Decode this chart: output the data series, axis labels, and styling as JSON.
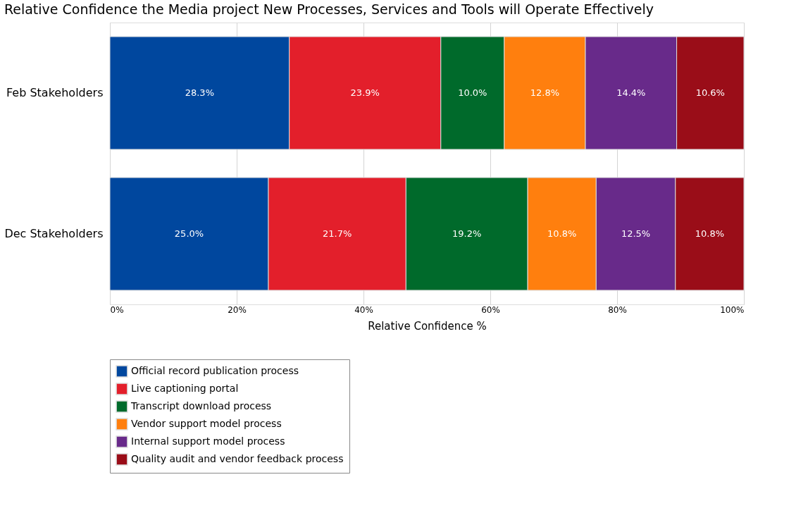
{
  "chart_data": {
    "type": "bar",
    "orientation": "horizontal",
    "stacked": true,
    "title": "Relative Confidence the Media project New Processes, Services and Tools will Operate Effectively",
    "xlabel": "Relative Confidence %",
    "categories": [
      "Feb Stakeholders",
      "Dec Stakeholders"
    ],
    "series": [
      {
        "name": "Official record publication process",
        "color": "#00479e",
        "values": [
          28.3,
          25.0
        ],
        "value_labels": [
          "28.3%",
          "25.0%"
        ]
      },
      {
        "name": "Live captioning portal",
        "color": "#e31f2b",
        "values": [
          23.9,
          21.7
        ],
        "value_labels": [
          "23.9%",
          "21.7%"
        ]
      },
      {
        "name": "Transcript download process",
        "color": "#006a2b",
        "values": [
          10.0,
          19.2
        ],
        "value_labels": [
          "10.0%",
          "19.2%"
        ]
      },
      {
        "name": "Vendor support model process",
        "color": "#ff7f0e",
        "values": [
          12.8,
          10.8
        ],
        "value_labels": [
          "12.8%",
          "10.8%"
        ]
      },
      {
        "name": "Internal support model process",
        "color": "#682a8a",
        "values": [
          14.4,
          12.5
        ],
        "value_labels": [
          "14.4%",
          "12.5%"
        ]
      },
      {
        "name": "Quality audit and vendor feedback process",
        "color": "#9a0d18",
        "values": [
          10.6,
          10.8
        ],
        "value_labels": [
          "10.6%",
          "10.8%"
        ]
      }
    ],
    "xlim": [
      0,
      100
    ],
    "xticks": [
      {
        "value": 0,
        "label": "0%"
      },
      {
        "value": 20,
        "label": "20%"
      },
      {
        "value": 40,
        "label": "40%"
      },
      {
        "value": 60,
        "label": "60%"
      },
      {
        "value": 80,
        "label": "80%"
      },
      {
        "value": 100,
        "label": "100%"
      }
    ],
    "grid": "x",
    "legend": "bottom left"
  }
}
